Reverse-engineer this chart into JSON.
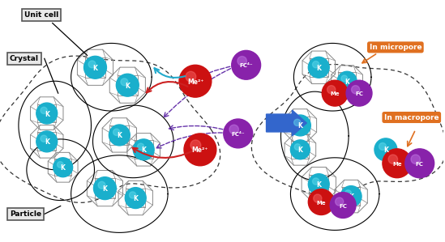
{
  "fig_width": 5.49,
  "fig_height": 2.99,
  "dpi": 100,
  "bg_color": "#ffffff",
  "k_color": "#1AAFCC",
  "me_color": "#CC1111",
  "fc_color": "#8822AA",
  "fc_outside_color": "#882299",
  "arrow_blue": "#3366CC",
  "arrow_cyan": "#22AACC",
  "arrow_red": "#CC2222",
  "arrow_purple": "#6633AA",
  "cage_color": "#999999",
  "label_edge": "#555555",
  "orange_color": "#E07020",
  "micropore_label": "In micropore",
  "macropore_label": "In macropore",
  "unit_cell_label": "Unit cell",
  "crystal_label": "Crystal",
  "particle_label": "Particle"
}
